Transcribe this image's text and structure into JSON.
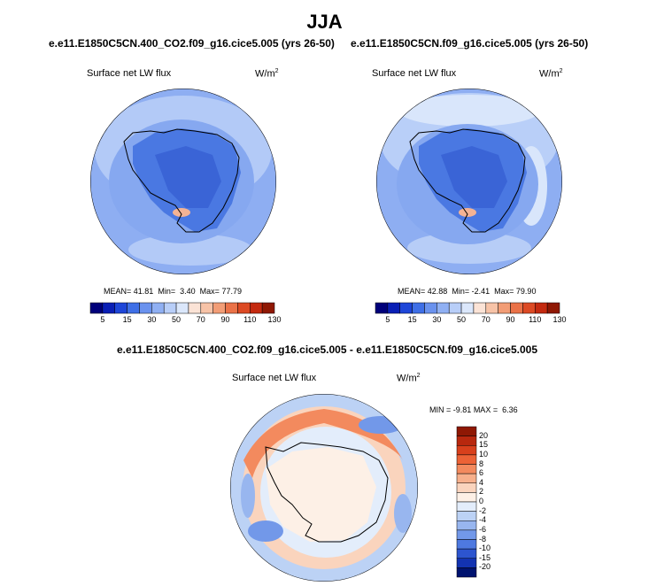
{
  "figure": {
    "season": "JJA",
    "case1": "e.e11.E1850C5CN.400_CO2.f09_g16.cice5.005 (yrs 26-50)",
    "case2": "e.e11.E1850C5CN.f09_g16.cice5.005 (yrs 26-50)",
    "diff_title": "e.e11.E1850C5CN.400_CO2.f09_g16.cice5.005 - e.e11.E1850C5CN.f09_g16.cice5.005",
    "variable": "Surface net LW flux",
    "units_base": "W/m",
    "units_exp": "2"
  },
  "chart_data": [
    {
      "type": "heatmap",
      "projection": "south-polar-stereographic",
      "title": "Surface net LW flux",
      "case": "e.e11.E1850C5CN.400_CO2.f09_g16.cice5.005 (yrs 26-50)",
      "units": "W/m2",
      "stats": {
        "mean_label": "MEAN=",
        "mean": "41.81",
        "min_label": "Min=",
        "min": "3.40",
        "max_label": "Max=",
        "max": "77.79"
      },
      "colorbar_levels": [
        "5",
        "15",
        "30",
        "50",
        "70",
        "90",
        "110",
        "130"
      ],
      "colorbar_colors": [
        "#00007a",
        "#0a1fb5",
        "#1e46d8",
        "#3f6fe6",
        "#6a92ee",
        "#90b0f3",
        "#b8cef8",
        "#dbe7fb",
        "#fbe3d6",
        "#f7c3a7",
        "#f29d76",
        "#ea7248",
        "#dc4a24",
        "#c42a10",
        "#8f1804"
      ]
    },
    {
      "type": "heatmap",
      "projection": "south-polar-stereographic",
      "title": "Surface net LW flux",
      "case": "e.e11.E1850C5CN.f09_g16.cice5.005 (yrs 26-50)",
      "units": "W/m2",
      "stats": {
        "mean_label": "MEAN=",
        "mean": "42.88",
        "min_label": "Min=",
        "min": "-2.41",
        "max_label": "Max=",
        "max": "79.90"
      },
      "colorbar_levels": [
        "5",
        "15",
        "30",
        "50",
        "70",
        "90",
        "110",
        "130"
      ],
      "colorbar_colors": [
        "#00007a",
        "#0a1fb5",
        "#1e46d8",
        "#3f6fe6",
        "#6a92ee",
        "#90b0f3",
        "#b8cef8",
        "#dbe7fb",
        "#fbe3d6",
        "#f7c3a7",
        "#f29d76",
        "#ea7248",
        "#dc4a24",
        "#c42a10",
        "#8f1804"
      ]
    },
    {
      "type": "heatmap",
      "projection": "south-polar-stereographic",
      "title": "Surface net LW flux",
      "case": "difference",
      "units": "W/m2",
      "stats": {
        "min_label": "MIN =",
        "min": "-9.81",
        "max_label": "MAX =",
        "max": "6.36"
      },
      "colorbar_levels": [
        "20",
        "15",
        "10",
        "8",
        "6",
        "4",
        "2",
        "0",
        "-2",
        "-4",
        "-6",
        "-8",
        "-10",
        "-15",
        "-20"
      ],
      "colorbar_colors": [
        "#8f1804",
        "#b8280e",
        "#d8401c",
        "#ec6236",
        "#f38a5e",
        "#f7b08c",
        "#fad4bd",
        "#fdf0e6",
        "#e3edfb",
        "#bcd2f5",
        "#98b6ef",
        "#7298e9",
        "#4e79e0",
        "#2d55cf",
        "#1333b1",
        "#00136f"
      ]
    }
  ]
}
